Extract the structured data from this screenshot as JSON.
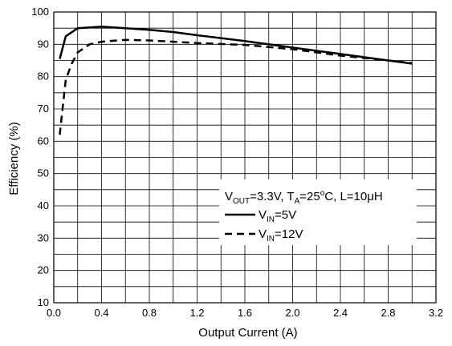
{
  "chart_data": {
    "type": "line",
    "xlabel": "Output Current (A)",
    "ylabel": "Efficiency (%)",
    "xlim": [
      0,
      3.2
    ],
    "ylim": [
      10,
      100
    ],
    "x_ticks": [
      "0.0",
      "0.4",
      "0.8",
      "1.2",
      "1.6",
      "2.0",
      "2.4",
      "2.8",
      "3.2"
    ],
    "y_ticks": [
      "10",
      "20",
      "30",
      "40",
      "50",
      "60",
      "70",
      "80",
      "90",
      "100"
    ],
    "minor_x_step": 0.2,
    "minor_y_step": 5,
    "grid": true,
    "legend": {
      "position": "center-right",
      "conditions": {
        "v": "V",
        "out_sub": "OUT",
        "v_value": "=3.3V, T",
        "t_sub": "A",
        "t_value": "=25",
        "deg": "o",
        "l_value": "C, L=10μH"
      }
    },
    "series": [
      {
        "name": "VIN=5V",
        "label_main": "V",
        "label_sub": "IN",
        "label_value": "=5V",
        "style": "solid",
        "x": [
          0.05,
          0.1,
          0.2,
          0.4,
          0.6,
          0.8,
          1.0,
          1.2,
          1.6,
          2.0,
          2.4,
          2.8,
          3.0
        ],
        "y": [
          85.5,
          92.5,
          95,
          95.5,
          95,
          94.5,
          93.8,
          92.8,
          91,
          89,
          87,
          85,
          84
        ]
      },
      {
        "name": "VIN=12V",
        "label_main": "V",
        "label_sub": "IN",
        "label_value": "=12V",
        "style": "dashed",
        "x": [
          0.05,
          0.1,
          0.15,
          0.2,
          0.3,
          0.4,
          0.6,
          0.8,
          1.0,
          1.2,
          1.6,
          2.0,
          2.4,
          2.8,
          3.0
        ],
        "y": [
          62,
          79,
          84,
          87.5,
          90,
          90.8,
          91.4,
          91.2,
          90.8,
          90.4,
          89.8,
          88.5,
          86.5,
          85,
          84.2
        ]
      }
    ]
  }
}
